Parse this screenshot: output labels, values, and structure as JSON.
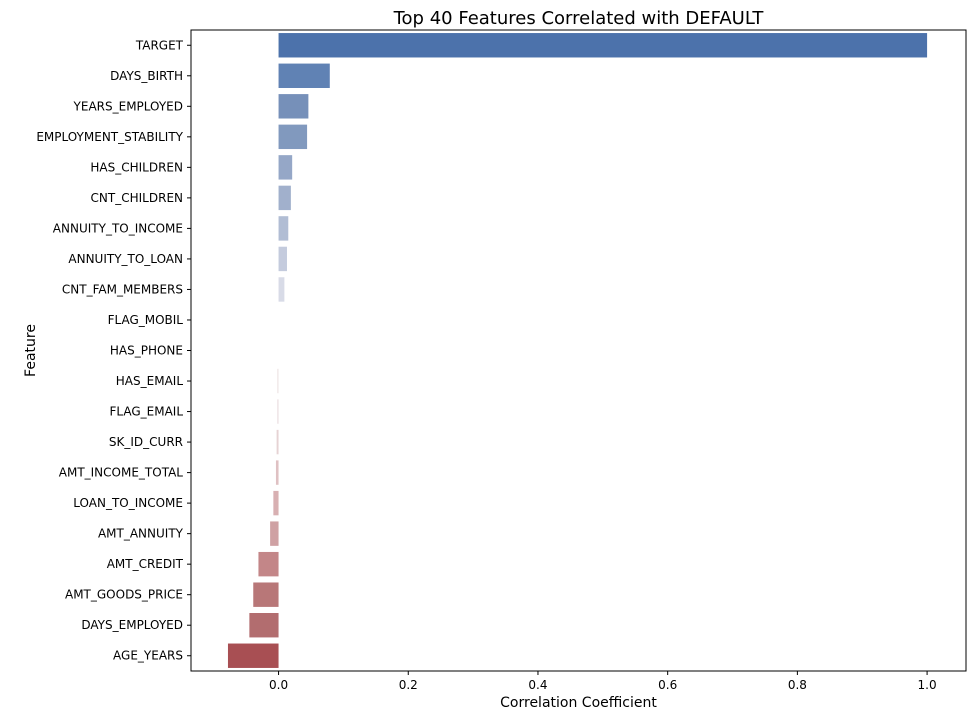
{
  "chart_data": {
    "type": "bar",
    "orientation": "horizontal",
    "title": "Top 40 Features Correlated with DEFAULT",
    "xlabel": "Correlation Coefficient",
    "ylabel": "Feature",
    "xlim": [
      -0.135,
      1.06
    ],
    "xticks": [
      0.0,
      0.2,
      0.4,
      0.6,
      0.8,
      1.0
    ],
    "xtick_labels": [
      "0.0",
      "0.2",
      "0.4",
      "0.6",
      "0.8",
      "1.0"
    ],
    "grid": false,
    "categories": [
      "TARGET",
      "DAYS_BIRTH",
      "YEARS_EMPLOYED",
      "EMPLOYMENT_STABILITY",
      "HAS_CHILDREN",
      "CNT_CHILDREN",
      "ANNUITY_TO_INCOME",
      "ANNUITY_TO_LOAN",
      "CNT_FAM_MEMBERS",
      "FLAG_MOBIL",
      "HAS_PHONE",
      "HAS_EMAIL",
      "FLAG_EMAIL",
      "SK_ID_CURR",
      "AMT_INCOME_TOTAL",
      "LOAN_TO_INCOME",
      "AMT_ANNUITY",
      "AMT_CREDIT",
      "AMT_GOODS_PRICE",
      "DAYS_EMPLOYED",
      "AGE_YEARS"
    ],
    "values": [
      1.0,
      0.079,
      0.046,
      0.044,
      0.021,
      0.019,
      0.015,
      0.013,
      0.009,
      0.0,
      0.0,
      -0.002,
      -0.002,
      -0.003,
      -0.004,
      -0.008,
      -0.013,
      -0.031,
      -0.039,
      -0.045,
      -0.078
    ],
    "colors": [
      "#4c72ab",
      "#6082b4",
      "#7690b9",
      "#8199be",
      "#95a7c7",
      "#a1b0cc",
      "#b1bdd4",
      "#c4cbdd",
      "#d8dbe7",
      "#efefef",
      "#efefef",
      "#efe6e6",
      "#ece1e2",
      "#e6d3d4",
      "#dfc1c3",
      "#d8b0b2",
      "#cfa1a3",
      "#c38688",
      "#b87778",
      "#b26d6f",
      "#a84f53"
    ]
  }
}
